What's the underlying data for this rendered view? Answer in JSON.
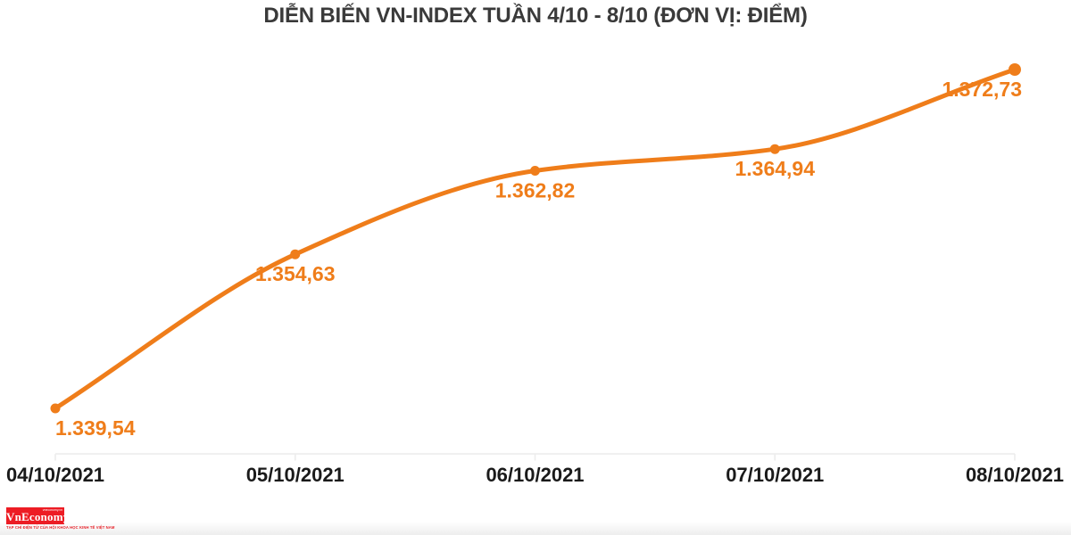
{
  "title": "DIỄN BIẾN VN-INDEX TUẦN 4/10 - 8/10 (ĐƠN VỊ: ĐIỂM)",
  "chart_data": {
    "type": "line",
    "series_name": "VN-INDEX",
    "categories": [
      "04/10/2021",
      "05/10/2021",
      "06/10/2021",
      "07/10/2021",
      "08/10/2021"
    ],
    "values": [
      1339.54,
      1354.63,
      1362.82,
      1364.94,
      1372.73
    ],
    "value_labels": [
      "1.339,54",
      "1.354,63",
      "1.362,82",
      "1.364,94",
      "1.372,73"
    ],
    "title": "DIỄN BIẾN VN-INDEX TUẦN 4/10 - 8/10 (ĐƠN VỊ: ĐIỂM)",
    "xlabel": "",
    "ylabel": "",
    "unit": "ĐIỂM",
    "ylim": [
      1339.54,
      1372.73
    ],
    "grid": false,
    "legend_position": "none",
    "line_color": "#EF7D1A",
    "marker_color": "#EF7D1A",
    "value_label_color": "#EF7D1A",
    "axis_color": "#ECECEC",
    "tick_label_color": "#1A1A1A",
    "title_color": "#3A3A3A",
    "smooth": true
  },
  "logo": {
    "name": "VnEconomy",
    "topline": "vneconomy.vn",
    "tagline": "TẠP CHÍ ĐIỆN TỬ CỦA HỘI KHOA HỌC KINH TẾ VIỆT NAM",
    "bg_color": "#ED1C24",
    "text_color": "#FFFFFF"
  }
}
